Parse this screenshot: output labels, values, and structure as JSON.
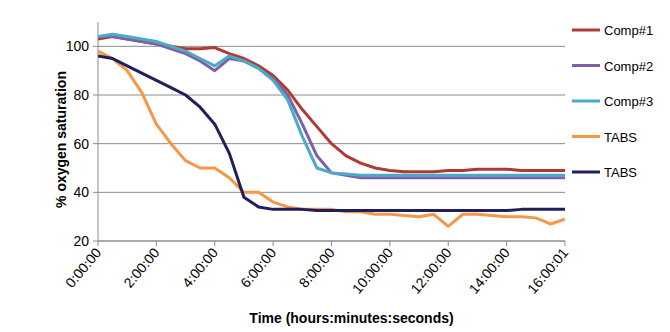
{
  "chart_data": {
    "type": "line",
    "xlabel": "Time (hours:minutes:seconds)",
    "ylabel": "% oxygen saturation",
    "x": [
      0,
      0.5,
      1,
      1.5,
      2,
      2.5,
      3,
      3.5,
      4,
      4.5,
      5,
      5.5,
      6,
      6.5,
      7,
      7.5,
      8,
      8.5,
      9,
      9.5,
      10,
      10.5,
      11,
      11.5,
      12,
      12.5,
      13,
      13.5,
      14,
      14.5,
      15,
      15.5,
      16
    ],
    "xlim": [
      0,
      16.0003
    ],
    "xticks": [
      {
        "value": 0,
        "label": "0:00:00"
      },
      {
        "value": 2,
        "label": "2:00:00"
      },
      {
        "value": 4,
        "label": "4:00:00"
      },
      {
        "value": 6,
        "label": "6:00:00"
      },
      {
        "value": 8,
        "label": "8:00:00"
      },
      {
        "value": 10,
        "label": "10:00:00"
      },
      {
        "value": 12,
        "label": "12:00:00"
      },
      {
        "value": 14,
        "label": "14:00:00"
      },
      {
        "value": 16.0003,
        "label": "16:00:01"
      }
    ],
    "ylim": [
      20,
      110
    ],
    "yticks": [
      20,
      40,
      60,
      80,
      100
    ],
    "grid": true,
    "legend": "right",
    "series": [
      {
        "name": "Comp#1",
        "color": "#b03a32",
        "values": [
          103,
          104,
          103,
          102,
          101,
          100,
          99,
          99,
          99.5,
          97,
          95,
          92,
          88,
          82,
          74,
          67,
          60,
          55,
          52,
          50,
          49,
          48.5,
          48.5,
          48.5,
          49,
          49,
          49.5,
          49.5,
          49.5,
          49,
          49,
          49,
          49
        ]
      },
      {
        "name": "Comp#2",
        "color": "#7f5fa8",
        "values": [
          104,
          104,
          103,
          102,
          101,
          99,
          97,
          94,
          90,
          95,
          94,
          91,
          87,
          80,
          68,
          55,
          48,
          47,
          46,
          46,
          46,
          46,
          46,
          46,
          46,
          46,
          46,
          46,
          46,
          46,
          46,
          46,
          46
        ]
      },
      {
        "name": "Comp#3",
        "color": "#4babc5",
        "values": [
          104,
          105,
          104,
          103,
          102,
          100,
          98,
          95,
          92,
          96,
          94,
          91,
          86,
          78,
          63,
          50,
          48,
          47.5,
          47,
          47,
          47,
          47,
          47,
          47,
          47,
          47,
          47,
          47,
          47,
          47,
          47,
          47,
          47
        ]
      },
      {
        "name": "TABS",
        "color": "#f79646",
        "values": [
          98,
          95,
          90,
          81,
          68,
          60,
          53,
          50,
          50,
          46,
          40,
          40,
          36,
          34,
          33,
          33,
          33,
          32,
          32,
          31,
          31,
          30.5,
          30,
          31,
          26,
          31,
          31,
          30.5,
          30,
          30,
          29.5,
          27,
          29
        ]
      },
      {
        "name": "TABS",
        "color": "#1f1f5f",
        "values": [
          96,
          95,
          92,
          89,
          86,
          83,
          80,
          75,
          68,
          56,
          38,
          34,
          33,
          33,
          33,
          32.5,
          32.5,
          32.5,
          32.5,
          32.5,
          32.5,
          32.5,
          32.5,
          32.5,
          32.5,
          32.5,
          32.5,
          32.5,
          32.5,
          33,
          33,
          33,
          33
        ]
      }
    ]
  }
}
